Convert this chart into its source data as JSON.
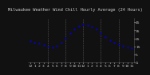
{
  "title": "Milwaukee Weather Wind Chill Hourly Average (24 Hours)",
  "hours": [
    0,
    1,
    2,
    3,
    4,
    5,
    6,
    7,
    8,
    9,
    10,
    11,
    12,
    13,
    14,
    15,
    16,
    17,
    18,
    19,
    20,
    21,
    22,
    23
  ],
  "wind_chill": [
    22,
    20,
    19,
    17,
    15,
    14,
    16,
    20,
    26,
    31,
    36,
    40,
    42,
    41,
    39,
    36,
    31,
    27,
    23,
    20,
    18,
    16,
    14,
    13
  ],
  "ylim": [
    -5,
    50
  ],
  "yticks": [
    -5,
    5,
    15,
    25,
    35,
    45
  ],
  "dot_color": "#0000dd",
  "bg_color": "#111111",
  "plot_bg": "#111111",
  "title_color": "#cccccc",
  "grid_color": "#555555",
  "tick_color": "#cccccc",
  "vgrid_positions": [
    4,
    8,
    12,
    16,
    20
  ],
  "dot_size": 2.5,
  "title_fontsize": 3.8,
  "tick_fontsize": 3.2,
  "hour_labels": [
    "12",
    "1",
    "2",
    "3",
    "4",
    "5",
    "6",
    "7",
    "8",
    "9",
    "10",
    "11",
    "12",
    "1",
    "2",
    "3",
    "4",
    "5",
    "6",
    "7",
    "8",
    "9",
    "10",
    "11"
  ]
}
